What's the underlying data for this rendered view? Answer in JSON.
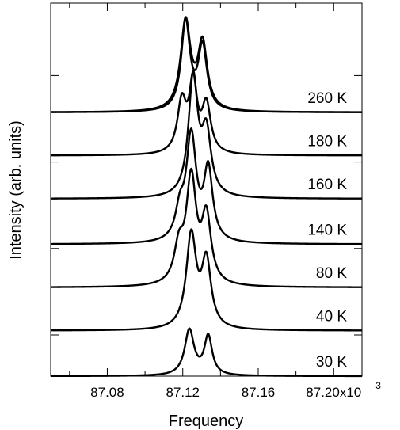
{
  "chart_data": {
    "type": "line",
    "title": "",
    "xlabel": "Frequency",
    "ylabel": "Intensity (arb. units)",
    "xlim": [
      87.05,
      87.215
    ],
    "ylim": [
      0,
      8.2
    ],
    "x_ticks": [
      87.08,
      87.12,
      87.16,
      87.2
    ],
    "x_tick_labels": [
      "87.08",
      "87.12",
      "87.16",
      "87.20x10"
    ],
    "x_tick_exponent": "3",
    "grid": false,
    "series": [
      {
        "name": "30 K",
        "baseline": 0,
        "peaks": [
          {
            "x0": 87.1235,
            "h": 1.0,
            "w": 0.003
          },
          {
            "x0": 87.1335,
            "h": 0.85,
            "w": 0.0025
          }
        ]
      },
      {
        "name": "40 K",
        "baseline": 1.0,
        "peaks": [
          {
            "x0": 87.1245,
            "h": 2.05,
            "w": 0.0032
          },
          {
            "x0": 87.1325,
            "h": 1.45,
            "w": 0.003
          }
        ]
      },
      {
        "name": "80 K",
        "baseline": 1.95,
        "peaks": [
          {
            "x0": 87.1245,
            "h": 2.3,
            "w": 0.0032
          },
          {
            "x0": 87.1325,
            "h": 1.45,
            "w": 0.003
          },
          {
            "x0": 87.118,
            "h": 0.75,
            "w": 0.003
          }
        ]
      },
      {
        "name": "140 K",
        "baseline": 2.9,
        "peaks": [
          {
            "x0": 87.1245,
            "h": 2.3,
            "w": 0.0032
          },
          {
            "x0": 87.1335,
            "h": 1.55,
            "w": 0.0028
          },
          {
            "x0": 87.1185,
            "h": 0.6,
            "w": 0.0028
          }
        ]
      },
      {
        "name": "160 K",
        "baseline": 3.9,
        "peaks": [
          {
            "x0": 87.1255,
            "h": 2.6,
            "w": 0.003
          },
          {
            "x0": 87.1325,
            "h": 1.35,
            "w": 0.003
          }
        ]
      },
      {
        "name": "180 K",
        "baseline": 4.85,
        "peaks": [
          {
            "x0": 87.1195,
            "h": 1.1,
            "w": 0.0028
          },
          {
            "x0": 87.1255,
            "h": 1.5,
            "w": 0.0025
          },
          {
            "x0": 87.1325,
            "h": 1.05,
            "w": 0.0028
          }
        ]
      },
      {
        "name": "260 K",
        "baseline": 5.8,
        "peaks": [
          {
            "x0": 87.1215,
            "h": 1.95,
            "w": 0.0032
          },
          {
            "x0": 87.1305,
            "h": 1.45,
            "w": 0.003
          }
        ]
      },
      {
        "name": "",
        "baseline": 5.8,
        "peaks": [
          {
            "x0": 87.1215,
            "h": 1.95,
            "w": 0.0028
          },
          {
            "x0": 87.1305,
            "h": 1.4,
            "w": 0.0028
          }
        ]
      }
    ]
  }
}
